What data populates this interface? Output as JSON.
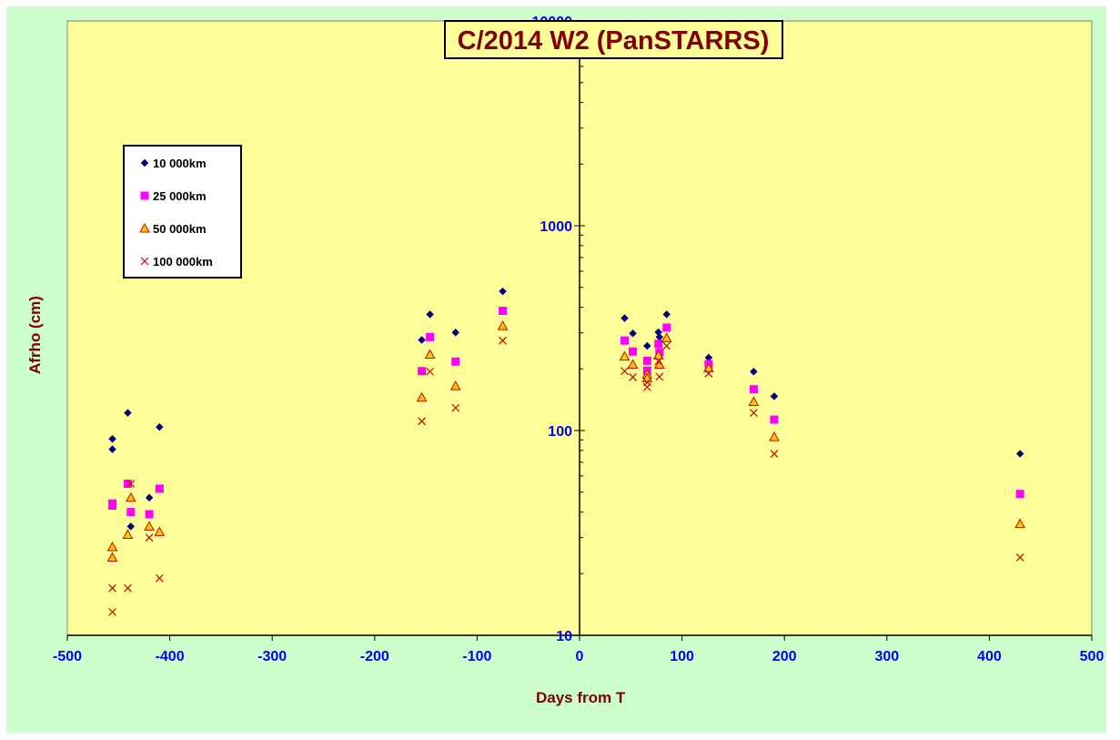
{
  "chart_data": {
    "type": "scatter",
    "title": "C/2014 W2 (PanSTARRS)",
    "xlabel": "Days from T",
    "ylabel": "Afrho (cm)",
    "xlim": [
      -500,
      500
    ],
    "ylim": [
      10,
      10000
    ],
    "yscale": "log",
    "grid": false,
    "legend_position": "upper-left",
    "x_ticks": [
      -500,
      -400,
      -300,
      -200,
      -100,
      0,
      100,
      200,
      300,
      400,
      500
    ],
    "y_ticks": [
      10,
      100,
      1000,
      10000
    ],
    "colors": {
      "plot_background": "#ffff99",
      "chart_background": "#ccffcc",
      "tick_labels": "#0000ff",
      "titles": "#800000"
    },
    "series": [
      {
        "name": "10 000km",
        "marker": "diamond",
        "color": "#000080",
        "points": [
          [
            -456,
            91
          ],
          [
            -456,
            81
          ],
          [
            -441,
            122
          ],
          [
            -438,
            34
          ],
          [
            -420,
            47
          ],
          [
            -410,
            104
          ],
          [
            -154,
            277
          ],
          [
            -146,
            369
          ],
          [
            -121,
            301
          ],
          [
            -75,
            478
          ],
          [
            44,
            354
          ],
          [
            52,
            298
          ],
          [
            66,
            259
          ],
          [
            77,
            302
          ],
          [
            78,
            286
          ],
          [
            85,
            369
          ],
          [
            126,
            227
          ],
          [
            170,
            194
          ],
          [
            190,
            147
          ],
          [
            430,
            77
          ]
        ]
      },
      {
        "name": "25 000km",
        "marker": "square",
        "color": "#ff00ff",
        "points": [
          [
            -456,
            44
          ],
          [
            -456,
            43
          ],
          [
            -441,
            55
          ],
          [
            -438,
            40
          ],
          [
            -420,
            39
          ],
          [
            -410,
            52
          ],
          [
            -154,
            195
          ],
          [
            -146,
            286
          ],
          [
            -121,
            217
          ],
          [
            -75,
            384
          ],
          [
            44,
            275
          ],
          [
            52,
            243
          ],
          [
            66,
            219
          ],
          [
            66,
            196
          ],
          [
            77,
            265
          ],
          [
            78,
            241
          ],
          [
            85,
            318
          ],
          [
            126,
            211
          ],
          [
            170,
            159
          ],
          [
            190,
            113
          ],
          [
            430,
            49
          ]
        ]
      },
      {
        "name": "50 000km",
        "marker": "triangle",
        "color": "#ffcc00",
        "points": [
          [
            -456,
            27
          ],
          [
            -456,
            24
          ],
          [
            -441,
            31
          ],
          [
            -438,
            47
          ],
          [
            -420,
            34
          ],
          [
            -410,
            32
          ],
          [
            -154,
            145
          ],
          [
            -146,
            235
          ],
          [
            -121,
            165
          ],
          [
            -75,
            324
          ],
          [
            44,
            230
          ],
          [
            52,
            210
          ],
          [
            66,
            188
          ],
          [
            66,
            180
          ],
          [
            77,
            233
          ],
          [
            78,
            210
          ],
          [
            85,
            283
          ],
          [
            126,
            202
          ],
          [
            170,
            138
          ],
          [
            190,
            93
          ],
          [
            430,
            35
          ]
        ]
      },
      {
        "name": "100 000km",
        "marker": "x",
        "color": "#cc0000",
        "points": [
          [
            -456,
            17
          ],
          [
            -456,
            13
          ],
          [
            -441,
            17
          ],
          [
            -438,
            55
          ],
          [
            -420,
            30
          ],
          [
            -410,
            19
          ],
          [
            -154,
            111
          ],
          [
            -146,
            194
          ],
          [
            -121,
            129
          ],
          [
            -75,
            275
          ],
          [
            44,
            195
          ],
          [
            52,
            182
          ],
          [
            66,
            172
          ],
          [
            66,
            163
          ],
          [
            77,
            218
          ],
          [
            78,
            183
          ],
          [
            85,
            259
          ],
          [
            126,
            190
          ],
          [
            170,
            122
          ],
          [
            190,
            77
          ],
          [
            430,
            24
          ]
        ]
      }
    ]
  }
}
